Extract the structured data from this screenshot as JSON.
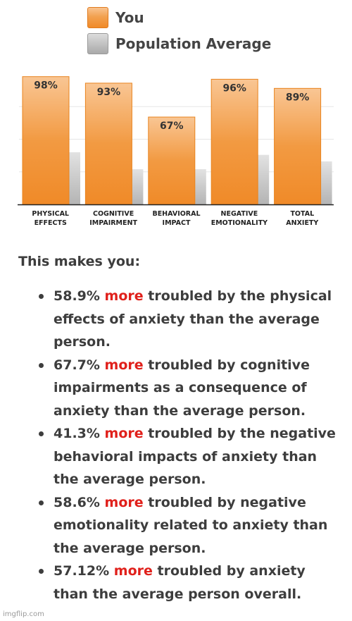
{
  "legend": {
    "you_label": "You",
    "population_label": "Population Average",
    "you_color": "#f08a28",
    "population_color": "#b0b0b0"
  },
  "chart_data": {
    "type": "bar",
    "categories": [
      "PHYSICAL EFFECTS",
      "COGNITIVE IMPAIRMENT",
      "BEHAVIORAL IMPACT",
      "NEGATIVE EMOTIONALITY",
      "TOTAL ANXIETY"
    ],
    "category_lines": [
      [
        "PHYSICAL",
        "EFFECTS"
      ],
      [
        "COGNITIVE",
        "IMPAIRMENT"
      ],
      [
        "BEHAVIORAL",
        "IMPACT"
      ],
      [
        "NEGATIVE",
        "EMOTIONALITY"
      ],
      [
        "TOTAL",
        "ANXIETY"
      ]
    ],
    "series": [
      {
        "name": "You",
        "values": [
          98,
          93,
          67,
          96,
          89
        ],
        "labels": [
          "98%",
          "93%",
          "67%",
          "96%",
          "89%"
        ]
      },
      {
        "name": "Population Average",
        "values": [
          40,
          27,
          27,
          38,
          33
        ]
      }
    ],
    "ylim": [
      0,
      100
    ],
    "grid": true,
    "legend_position": "top"
  },
  "summary": {
    "intro": "This makes you:",
    "highlight": "more",
    "items": [
      {
        "before": "58.9%",
        "after": "troubled by the physical effects of anxiety than the average person."
      },
      {
        "before": "67.7%",
        "after": "troubled by cognitive impairments as a consequence of anxiety than the average person."
      },
      {
        "before": "41.3%",
        "after": "troubled by the negative behavioral impacts of anxiety than the average person."
      },
      {
        "before": "58.6%",
        "after": "troubled by negative emotionality related to anxiety than the average person."
      },
      {
        "before": "57.12%",
        "after": "troubled by anxiety than the average person overall."
      }
    ]
  },
  "watermark": "imgflip.com"
}
